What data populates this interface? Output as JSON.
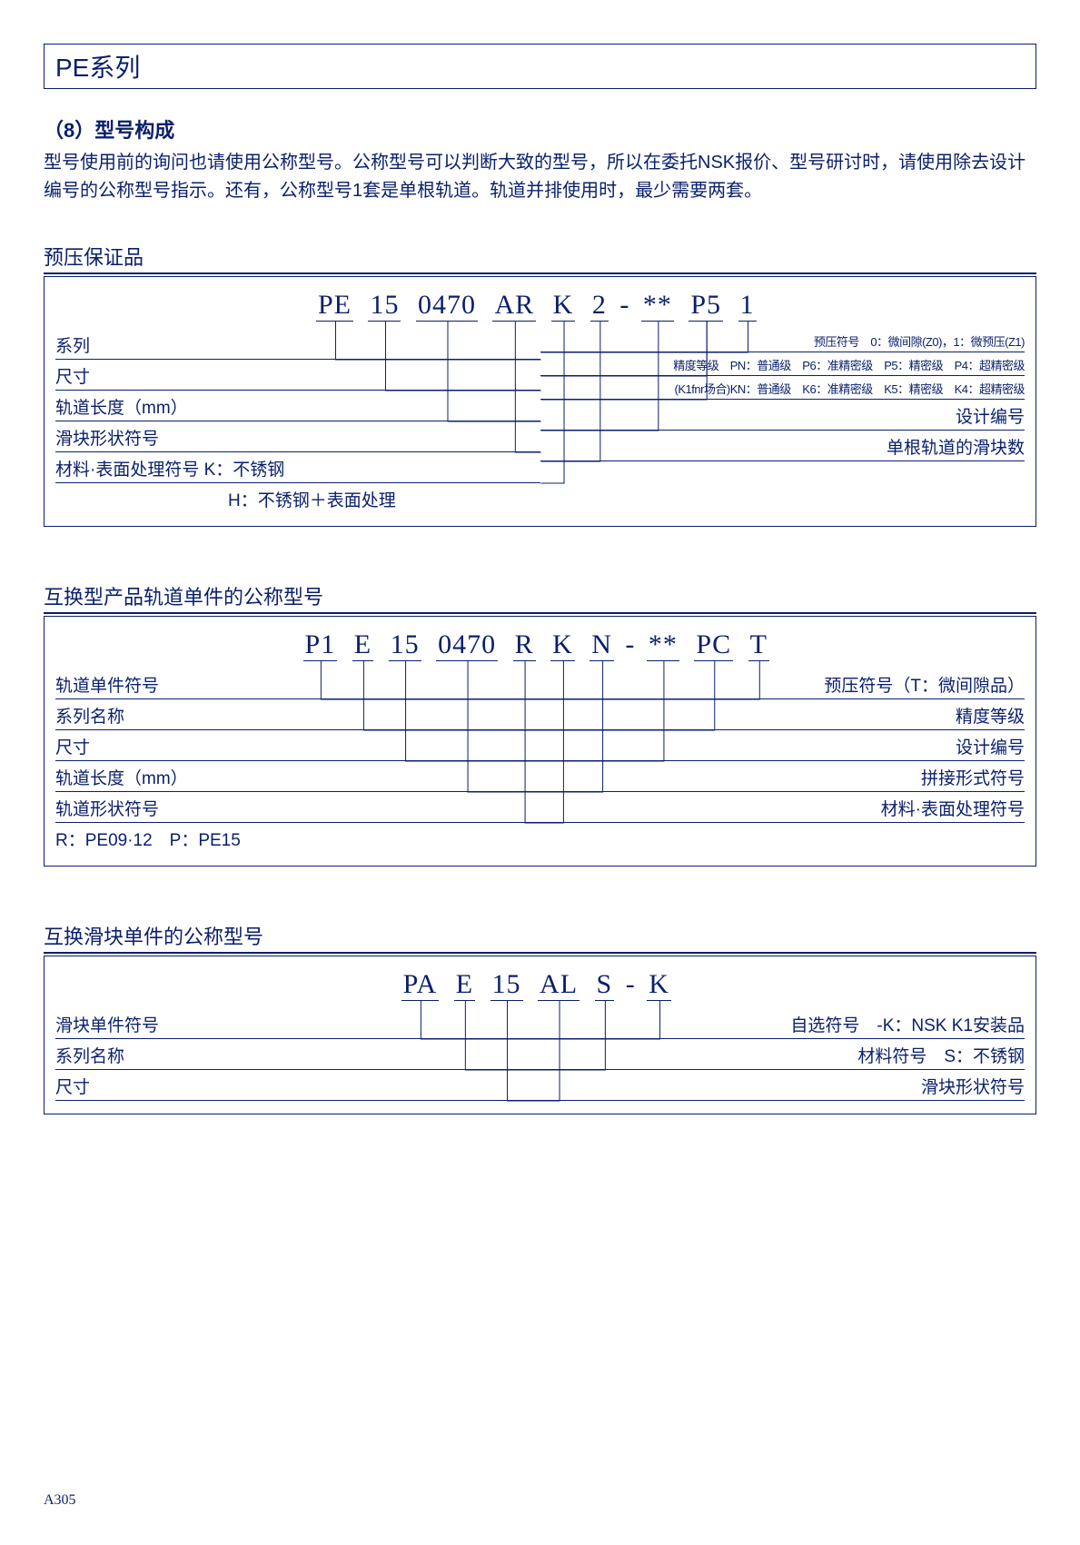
{
  "colors": {
    "ink": "#0a1f6b",
    "wire": "#0a1f6b",
    "bg": "#ffffff"
  },
  "page_title": "PE系列",
  "section_num": "（8）型号构成",
  "intro": "型号使用前的询问也请使用公称型号。公称型号可以判断大致的型号，所以在委托NSK报价、型号研讨时，请使用除去设计编号的公称型号指示。还有，公称型号1套是单根轨道。轨道并排使用时，最少需要两套。",
  "d1": {
    "title": "预压保证品",
    "segs": [
      "PE",
      "15",
      "0470",
      "AR",
      "K",
      "2",
      "-",
      "**",
      "P5",
      "1"
    ],
    "left": [
      {
        "label": "系列"
      },
      {
        "label": "尺寸"
      },
      {
        "label": "轨道长度（mm）"
      },
      {
        "label": "滑块形状符号"
      },
      {
        "label": "材料·表面处理符号  K：不锈钢"
      },
      {
        "label": "H：不锈钢＋表面处理",
        "indent": true
      }
    ],
    "right": [
      {
        "label": "预压符号　0：微间隙(Z0)，1：微预压(Z1)",
        "small": true
      },
      {
        "label": "精度等级　PN：普通级　P6：准精密级　P5：精密级　P4：超精密级",
        "small": true
      },
      {
        "label": "(K1fnr场合)KN：普通级　K6：准精密级　K5：精密级　K4：超精密级",
        "small": true
      },
      {
        "label": "设计编号"
      },
      {
        "label": "单根轨道的滑块数"
      }
    ]
  },
  "d2": {
    "title": "互换型产品轨道单件的公称型号",
    "segs": [
      "P1",
      "E",
      "15",
      "0470",
      "R",
      "K",
      "N",
      "-",
      "**",
      "PC",
      "T"
    ],
    "left": [
      {
        "label": "轨道单件符号"
      },
      {
        "label": "系列名称"
      },
      {
        "label": "尺寸"
      },
      {
        "label": "轨道长度（mm）"
      },
      {
        "label": "轨道形状符号"
      },
      {
        "label": "R：PE09·12　P：PE15",
        "noborder": true
      }
    ],
    "right": [
      {
        "label": "预压符号（T：微间隙品）"
      },
      {
        "label": "精度等级"
      },
      {
        "label": "设计编号"
      },
      {
        "label": "拼接形式符号"
      },
      {
        "label": "材料·表面处理符号"
      }
    ]
  },
  "d3": {
    "title": "互换滑块单件的公称型号",
    "segs": [
      "PA",
      "E",
      "15",
      "AL",
      "S",
      "-",
      "K"
    ],
    "left": [
      {
        "label": "滑块单件符号"
      },
      {
        "label": "系列名称"
      },
      {
        "label": "尺寸"
      }
    ],
    "right": [
      {
        "label": "自选符号　-K：NSK K1安装品"
      },
      {
        "label": "材料符号　S：不锈钢"
      },
      {
        "label": "滑块形状符号"
      }
    ]
  },
  "page_num": "A305"
}
